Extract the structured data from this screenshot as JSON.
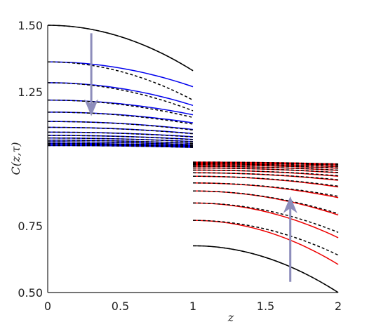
{
  "chart_data": {
    "type": "line",
    "xlabel": "z",
    "ylabel": "C(z,τ)",
    "xlim": [
      0,
      2
    ],
    "ylim": [
      0.5,
      1.5
    ],
    "x_ticks": [
      "0",
      "0.5",
      "1",
      "1.5",
      "2"
    ],
    "y_ticks": [
      "0.50",
      "0.75",
      "1.25",
      "1.50"
    ],
    "grid": false,
    "left_region": {
      "x_range": [
        0,
        1
      ],
      "solid_color": "#0000ee",
      "dashed_color": "#000000",
      "curves": [
        {
          "y0": 1.5,
          "y1": 1.33,
          "dashed_y1": 1.33,
          "black": true
        },
        {
          "y0": 1.363,
          "y1": 1.27,
          "dashed_y1": 1.22
        },
        {
          "y0": 1.285,
          "y1": 1.2,
          "dashed_y1": 1.18
        },
        {
          "y0": 1.22,
          "y1": 1.165,
          "dashed_y1": 1.155
        },
        {
          "y0": 1.175,
          "y1": 1.135,
          "dashed_y1": 1.13
        },
        {
          "y0": 1.14,
          "y1": 1.11,
          "dashed_y1": 1.108
        },
        {
          "y0": 1.118,
          "y1": 1.095,
          "dashed_y1": 1.094
        },
        {
          "y0": 1.1,
          "y1": 1.083,
          "dashed_y1": 1.082
        },
        {
          "y0": 1.088,
          "y1": 1.073,
          "dashed_y1": 1.072
        },
        {
          "y0": 1.078,
          "y1": 1.065,
          "dashed_y1": 1.064
        },
        {
          "y0": 1.07,
          "y1": 1.058,
          "dashed_y1": 1.058
        },
        {
          "y0": 1.064,
          "y1": 1.053,
          "dashed_y1": 1.053
        },
        {
          "y0": 1.058,
          "y1": 1.049,
          "dashed_y1": 1.049
        },
        {
          "y0": 1.054,
          "y1": 1.046,
          "dashed_y1": 1.046
        },
        {
          "y0": 1.05,
          "y1": 1.043,
          "dashed_y1": 1.043
        }
      ]
    },
    "right_region": {
      "x_range": [
        1,
        2
      ],
      "solid_color": "#ee0000",
      "dashed_color": "#000000",
      "curves": [
        {
          "y0": 0.675,
          "y1": 0.5,
          "dashed_y1": 0.5,
          "black": true
        },
        {
          "y0": 0.77,
          "y1": 0.605,
          "dashed_y1": 0.64
        },
        {
          "y0": 0.835,
          "y1": 0.705,
          "dashed_y1": 0.725
        },
        {
          "y0": 0.88,
          "y1": 0.79,
          "dashed_y1": 0.795
        },
        {
          "y0": 0.91,
          "y1": 0.855,
          "dashed_y1": 0.86
        },
        {
          "y0": 0.935,
          "y1": 0.895,
          "dashed_y1": 0.898
        },
        {
          "y0": 0.948,
          "y1": 0.92,
          "dashed_y1": 0.922
        },
        {
          "y0": 0.958,
          "y1": 0.935,
          "dashed_y1": 0.937
        },
        {
          "y0": 0.966,
          "y1": 0.948,
          "dashed_y1": 0.949
        },
        {
          "y0": 0.972,
          "y1": 0.957,
          "dashed_y1": 0.958
        },
        {
          "y0": 0.977,
          "y1": 0.965,
          "dashed_y1": 0.966
        },
        {
          "y0": 0.981,
          "y1": 0.971,
          "dashed_y1": 0.972
        },
        {
          "y0": 0.985,
          "y1": 0.977,
          "dashed_y1": 0.977
        },
        {
          "y0": 0.988,
          "y1": 0.981,
          "dashed_y1": 0.981
        }
      ]
    },
    "arrows": [
      {
        "x": 0.3,
        "from_y": 1.47,
        "to_y": 1.16,
        "color": "#8d8dbb"
      },
      {
        "x": 1.67,
        "from_y": 0.54,
        "to_y": 0.86,
        "color": "#8d8dbb"
      }
    ]
  }
}
